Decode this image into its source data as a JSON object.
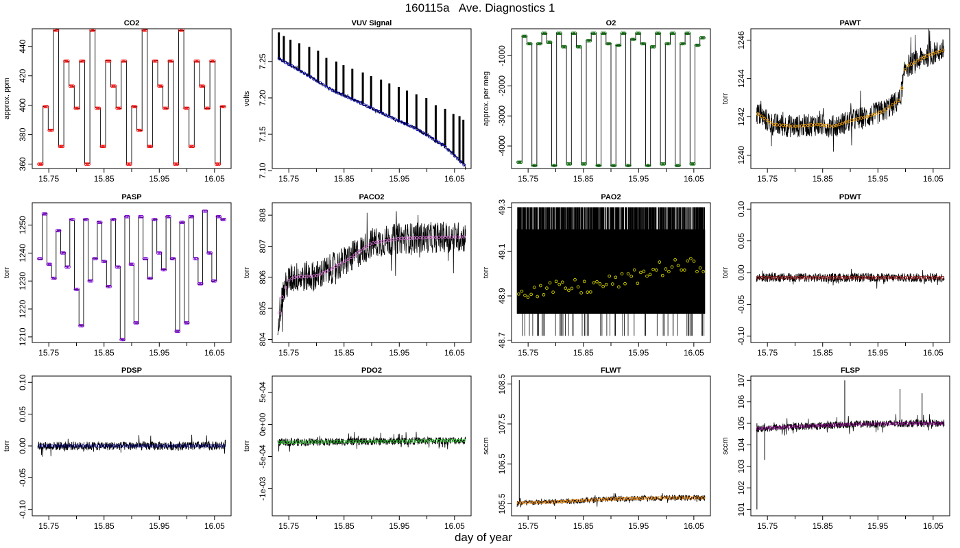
{
  "title": "160115a   Ave. Diagnostics 1",
  "xlabel": "day of year",
  "chart_data": [
    {
      "type": "line",
      "title": "CO2",
      "ylabel": "approx. ppm",
      "xlim": [
        15.72,
        16.08
      ],
      "xticks": [
        "15.75",
        "15.85",
        "15.95",
        "16.05"
      ],
      "ylim": [
        357,
        452
      ],
      "yticks": [
        360,
        380,
        400,
        420,
        440
      ],
      "ytick_labels": [
        "360",
        "380",
        "400",
        "420",
        "440"
      ],
      "point_color": "#ff0000",
      "noise": 1.0,
      "levels": [
        360,
        399,
        383,
        451,
        372,
        430,
        413,
        398,
        430,
        360,
        451,
        398,
        372,
        430,
        413,
        398,
        430,
        360,
        399,
        383,
        451,
        372,
        430,
        413,
        398,
        430,
        360,
        451,
        398,
        372,
        430,
        413,
        398,
        430,
        360,
        399
      ]
    },
    {
      "type": "line",
      "title": "VUV Signal",
      "ylabel": "volts",
      "xlim": [
        15.72,
        16.08
      ],
      "xticks": [
        "15.75",
        "15.85",
        "15.95",
        "16.05"
      ],
      "ylim": [
        7.103,
        7.295
      ],
      "yticks": [
        7.1,
        7.15,
        7.2,
        7.25
      ],
      "ytick_labels": [
        "7.10",
        "7.15",
        "7.20",
        "7.25"
      ],
      "point_color": "#0000cd",
      "noise": 0.002,
      "trend": [
        [
          15.73,
          7.255
        ],
        [
          15.78,
          7.233
        ],
        [
          15.83,
          7.21
        ],
        [
          15.88,
          7.193
        ],
        [
          15.93,
          7.175
        ],
        [
          15.98,
          7.158
        ],
        [
          16.03,
          7.135
        ],
        [
          16.07,
          7.106
        ]
      ],
      "spikes": [
        [
          15.732,
          7.29
        ],
        [
          15.741,
          7.285
        ],
        [
          15.753,
          7.28
        ],
        [
          15.769,
          7.275
        ],
        [
          15.787,
          7.27
        ],
        [
          15.803,
          7.265
        ],
        [
          15.818,
          7.255
        ],
        [
          15.836,
          7.25
        ],
        [
          15.849,
          7.245
        ],
        [
          15.865,
          7.24
        ],
        [
          15.884,
          7.235
        ],
        [
          15.899,
          7.23
        ],
        [
          15.917,
          7.225
        ],
        [
          15.932,
          7.22
        ],
        [
          15.949,
          7.215
        ],
        [
          15.964,
          7.21
        ],
        [
          15.981,
          7.205
        ],
        [
          15.999,
          7.2
        ],
        [
          16.016,
          7.19
        ],
        [
          16.033,
          7.185
        ],
        [
          16.048,
          7.178
        ],
        [
          16.059,
          7.175
        ],
        [
          16.066,
          7.17
        ]
      ]
    },
    {
      "type": "line",
      "title": "O2",
      "ylabel": "approx. per meg",
      "xlim": [
        15.72,
        16.08
      ],
      "xticks": [
        "15.75",
        "15.85",
        "15.95",
        "16.05"
      ],
      "ylim": [
        -4750,
        -100
      ],
      "yticks": [
        -4000,
        -3000,
        -2000,
        -1000
      ],
      "ytick_labels": [
        "-4000",
        "-3000",
        "-2000",
        "-1000"
      ],
      "point_color": "#006400",
      "noise": 15,
      "levels": [
        -4540,
        -350,
        -600,
        -4650,
        -600,
        -250,
        -550,
        -4650,
        -250,
        -700,
        -4600,
        -250,
        -700,
        -4600,
        -500,
        -250,
        -4650,
        -250,
        -600,
        -4650,
        -650,
        -250,
        -4650,
        -450,
        -250,
        -600,
        -4650,
        -700,
        -250,
        -4600,
        -600,
        -250,
        -4650,
        -600,
        -250,
        -4600,
        -650,
        -400
      ]
    },
    {
      "type": "line",
      "title": "PAWT",
      "ylabel": "torr",
      "xlim": [
        15.72,
        16.08
      ],
      "xticks": [
        "15.75",
        "15.85",
        "15.95",
        "16.05"
      ],
      "ylim": [
        1239.3,
        1246.6
      ],
      "yticks": [
        1240,
        1242,
        1244,
        1246
      ],
      "ytick_labels": [
        "1240",
        "1242",
        "1244",
        "1246"
      ],
      "point_color": "#ffa500",
      "noise": 0.6,
      "trend": [
        [
          15.73,
          1242.2
        ],
        [
          15.76,
          1241.6
        ],
        [
          15.8,
          1241.5
        ],
        [
          15.84,
          1241.6
        ],
        [
          15.87,
          1241.5
        ],
        [
          15.9,
          1241.8
        ],
        [
          15.93,
          1242.0
        ],
        [
          15.96,
          1242.3
        ],
        [
          15.99,
          1242.9
        ],
        [
          16.0,
          1244.6
        ],
        [
          16.04,
          1245.2
        ],
        [
          16.07,
          1245.5
        ]
      ]
    },
    {
      "type": "line",
      "title": "PASP",
      "ylabel": "torr",
      "xlim": [
        15.72,
        16.08
      ],
      "xticks": [
        "15.75",
        "15.85",
        "15.95",
        "16.05"
      ],
      "ylim": [
        1208,
        1258
      ],
      "yticks": [
        1210,
        1220,
        1230,
        1240,
        1250
      ],
      "ytick_labels": [
        "1210",
        "1220",
        "1230",
        "1240",
        "1250"
      ],
      "point_color": "#7b00d4",
      "noise": 0.8,
      "levels": [
        1238,
        1254,
        1236,
        1231,
        1248,
        1240,
        1235,
        1252,
        1227,
        1214,
        1252,
        1230,
        1238,
        1251,
        1237,
        1228,
        1252,
        1235,
        1209,
        1253,
        1236,
        1215,
        1253,
        1238,
        1231,
        1252,
        1240,
        1234,
        1253,
        1238,
        1212,
        1251,
        1215,
        1253,
        1238,
        1229,
        1255,
        1240,
        1230,
        1253,
        1252
      ]
    },
    {
      "type": "line",
      "title": "PACO2",
      "ylabel": "torr",
      "xlim": [
        15.72,
        16.08
      ],
      "xticks": [
        "15.75",
        "15.85",
        "15.95",
        "16.05"
      ],
      "ylim": [
        803.9,
        808.4
      ],
      "yticks": [
        804,
        805,
        806,
        807,
        808
      ],
      "ytick_labels": [
        "804",
        "805",
        "806",
        "807",
        "808"
      ],
      "point_color": "#da70d6",
      "noise": 0.5,
      "trend": [
        [
          15.73,
          804.6
        ],
        [
          15.74,
          805.5
        ],
        [
          15.75,
          805.9
        ],
        [
          15.76,
          806.0
        ],
        [
          15.8,
          806.05
        ],
        [
          15.82,
          806.2
        ],
        [
          15.86,
          806.6
        ],
        [
          15.9,
          807.1
        ],
        [
          15.95,
          807.25
        ],
        [
          16.0,
          807.28
        ],
        [
          16.07,
          807.3
        ]
      ]
    },
    {
      "type": "line",
      "title": "PAO2",
      "ylabel": "torr",
      "xlim": [
        15.72,
        16.08
      ],
      "xticks": [
        "15.75",
        "15.85",
        "15.95",
        "16.05"
      ],
      "ylim": [
        48.69,
        49.32
      ],
      "yticks": [
        48.7,
        48.9,
        49.1,
        49.3
      ],
      "ytick_labels": [
        "48.7",
        "48.9",
        "49.1",
        "49.3"
      ],
      "point_color": "#d4d400",
      "band": [
        48.82,
        49.2
      ],
      "spike_high": 49.3,
      "spike_low": 48.72,
      "trend": [
        [
          15.73,
          48.93
        ],
        [
          15.78,
          48.92
        ],
        [
          15.82,
          48.94
        ],
        [
          15.86,
          48.94
        ],
        [
          15.9,
          48.96
        ],
        [
          15.94,
          48.98
        ],
        [
          15.98,
          49.02
        ],
        [
          16.02,
          49.03
        ],
        [
          16.07,
          49.04
        ]
      ]
    },
    {
      "type": "line",
      "title": "PDWT",
      "ylabel": "torr",
      "xlim": [
        15.72,
        16.08
      ],
      "xticks": [
        "15.75",
        "15.85",
        "15.95",
        "16.05"
      ],
      "ylim": [
        -0.11,
        0.11
      ],
      "yticks": [
        -0.1,
        -0.05,
        0.0,
        0.05,
        0.1
      ],
      "ytick_labels": [
        "-0.10",
        "-0.05",
        "0.00",
        "0.05",
        "0.10"
      ],
      "point_color": "#b22222",
      "noise": 0.007,
      "trend": [
        [
          15.73,
          -0.008
        ],
        [
          16.07,
          -0.008
        ]
      ]
    },
    {
      "type": "line",
      "title": "PDSP",
      "ylabel": "torr",
      "xlim": [
        15.72,
        16.08
      ],
      "xticks": [
        "15.75",
        "15.85",
        "15.95",
        "16.05"
      ],
      "ylim": [
        -0.11,
        0.11
      ],
      "yticks": [
        -0.1,
        -0.05,
        0.0,
        0.05,
        0.1
      ],
      "ytick_labels": [
        "-0.10",
        "-0.05",
        "0.00",
        "0.05",
        "0.10"
      ],
      "point_color": "#00008b",
      "noise": 0.007,
      "trend": [
        [
          15.73,
          0.0
        ],
        [
          16.07,
          0.0
        ]
      ]
    },
    {
      "type": "line",
      "title": "PDO2",
      "ylabel": "torr",
      "xlim": [
        15.72,
        16.08
      ],
      "xticks": [
        "15.75",
        "15.85",
        "15.95",
        "16.05"
      ],
      "ylim": [
        -0.00142,
        0.00075
      ],
      "yticks": [
        -0.001,
        -0.0005,
        0.0,
        0.0005
      ],
      "ytick_labels": [
        "-1e-03",
        "-5e-04",
        "0e+00",
        "5e-04"
      ],
      "point_color": "#32cd32",
      "noise": 6e-05,
      "trend": [
        [
          15.73,
          -0.00028
        ],
        [
          16.07,
          -0.00025
        ]
      ]
    },
    {
      "type": "line",
      "title": "FLWT",
      "ylabel": "sccm",
      "xlim": [
        15.72,
        16.08
      ],
      "xticks": [
        "15.75",
        "15.85",
        "15.95",
        "16.05"
      ],
      "ylim": [
        105.2,
        108.7
      ],
      "yticks": [
        105.5,
        106.5,
        107.5,
        108.5
      ],
      "ytick_labels": [
        "105.5",
        "106.5",
        "107.5",
        "108.5"
      ],
      "point_color": "#ff8c00",
      "noise": 0.07,
      "trend": [
        [
          15.73,
          105.52
        ],
        [
          15.8,
          105.55
        ],
        [
          15.9,
          105.62
        ],
        [
          16.0,
          105.65
        ],
        [
          16.07,
          105.65
        ]
      ]
    },
    {
      "type": "line",
      "title": "FLSP",
      "ylabel": "sccm",
      "xlim": [
        15.72,
        16.08
      ],
      "xticks": [
        "15.75",
        "15.85",
        "15.95",
        "16.05"
      ],
      "ylim": [
        100.7,
        107.2
      ],
      "yticks": [
        101,
        102,
        103,
        104,
        105,
        106,
        107
      ],
      "ytick_labels": [
        "101",
        "102",
        "103",
        "104",
        "105",
        "106",
        "107"
      ],
      "point_color": "#8b008b",
      "noise": 0.18,
      "trend": [
        [
          15.73,
          104.75
        ],
        [
          15.8,
          104.85
        ],
        [
          15.9,
          104.95
        ],
        [
          16.0,
          105.0
        ],
        [
          16.07,
          105.0
        ]
      ]
    }
  ]
}
